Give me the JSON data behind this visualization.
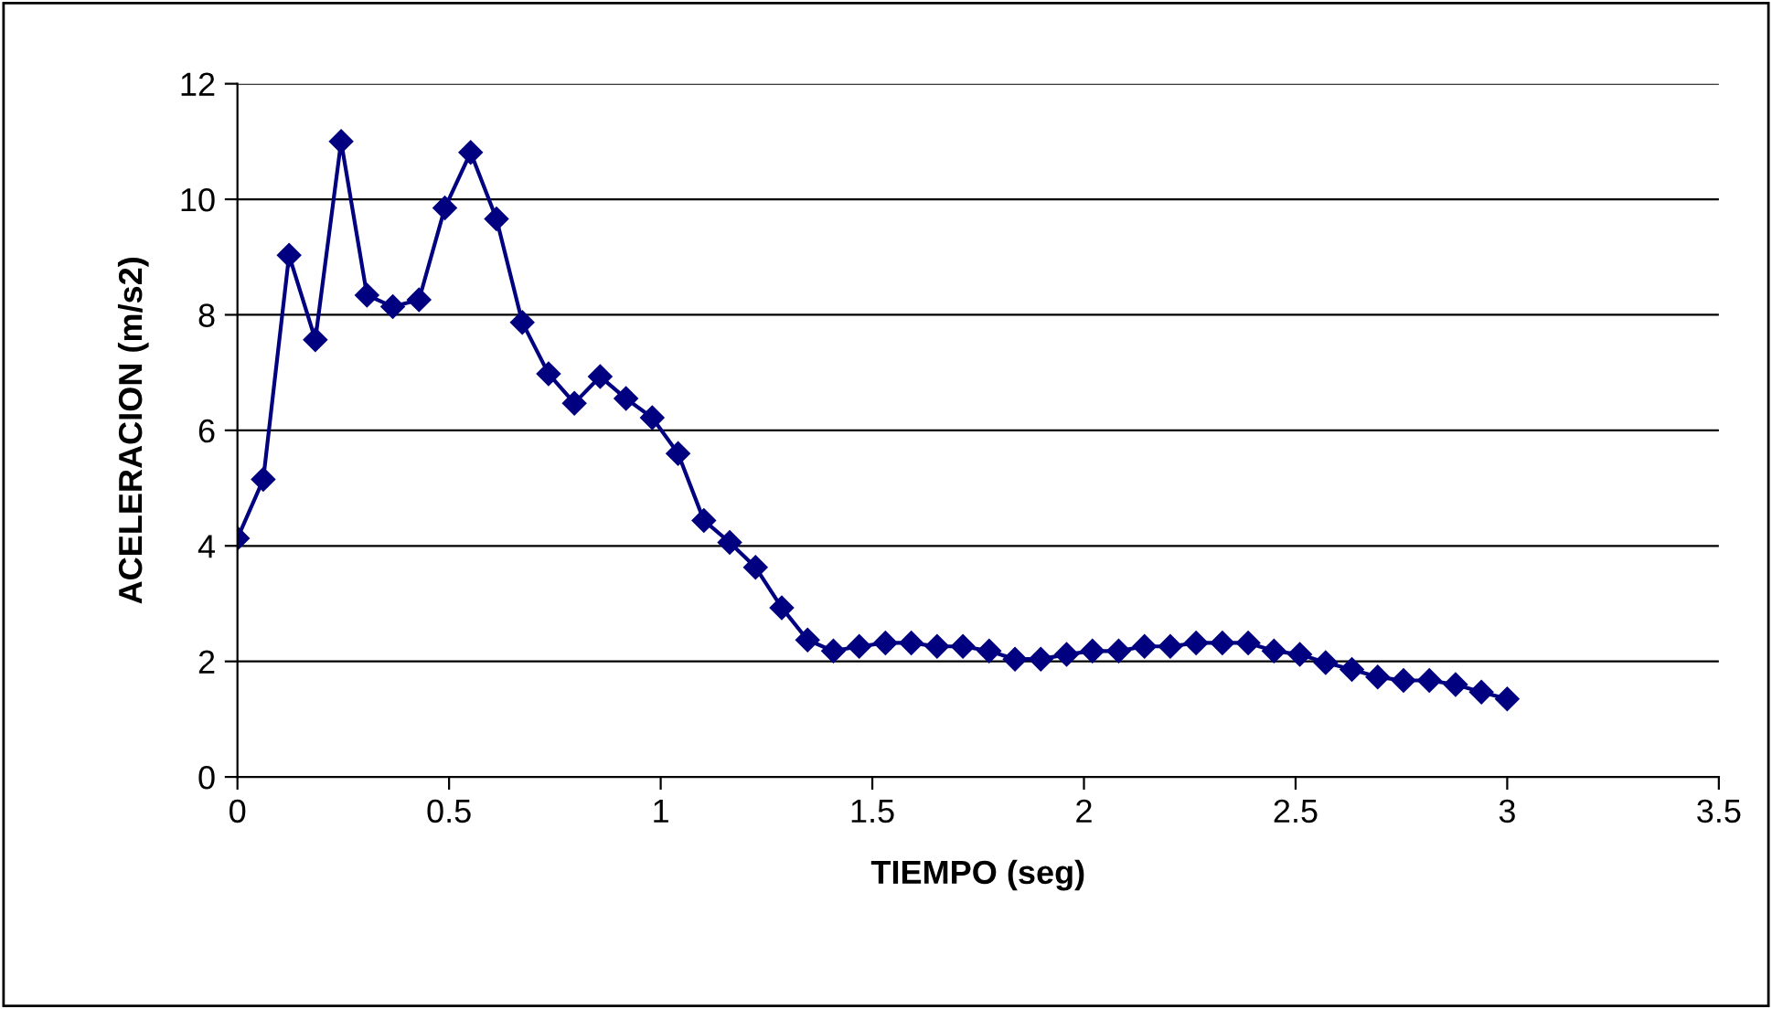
{
  "chart_data": {
    "type": "line",
    "xlabel": "TIEMPO (seg)",
    "ylabel": "ACELERACION (m/s2)",
    "x": [
      0,
      0.061,
      0.122,
      0.184,
      0.245,
      0.306,
      0.367,
      0.429,
      0.49,
      0.551,
      0.612,
      0.673,
      0.735,
      0.796,
      0.857,
      0.918,
      0.98,
      1.041,
      1.102,
      1.163,
      1.224,
      1.286,
      1.347,
      1.408,
      1.469,
      1.531,
      1.592,
      1.653,
      1.714,
      1.776,
      1.837,
      1.898,
      1.959,
      2.02,
      2.082,
      2.143,
      2.204,
      2.265,
      2.327,
      2.388,
      2.449,
      2.51,
      2.571,
      2.633,
      2.694,
      2.755,
      2.816,
      2.878,
      2.939,
      3.0
    ],
    "series": [
      {
        "color": "#000080",
        "values": [
          4.13,
          5.15,
          9.03,
          7.57,
          11.0,
          8.34,
          8.14,
          8.26,
          9.85,
          10.81,
          9.66,
          7.87,
          6.98,
          6.47,
          6.93,
          6.55,
          6.22,
          5.6,
          4.44,
          4.06,
          3.63,
          2.93,
          2.37,
          2.18,
          2.26,
          2.32,
          2.32,
          2.26,
          2.26,
          2.18,
          2.04,
          2.04,
          2.12,
          2.18,
          2.18,
          2.26,
          2.26,
          2.32,
          2.32,
          2.32,
          2.18,
          2.12,
          1.98,
          1.86,
          1.73,
          1.67,
          1.67,
          1.6,
          1.47,
          1.35
        ]
      }
    ],
    "xlim": [
      0,
      3.5
    ],
    "xticks": [
      0,
      0.5,
      1,
      1.5,
      2,
      2.5,
      3,
      3.5
    ],
    "ylim": [
      0,
      12
    ],
    "yticks": [
      0,
      2,
      4,
      6,
      8,
      10,
      12
    ],
    "grid": "y",
    "marker": "diamond",
    "line_style": "solid"
  }
}
